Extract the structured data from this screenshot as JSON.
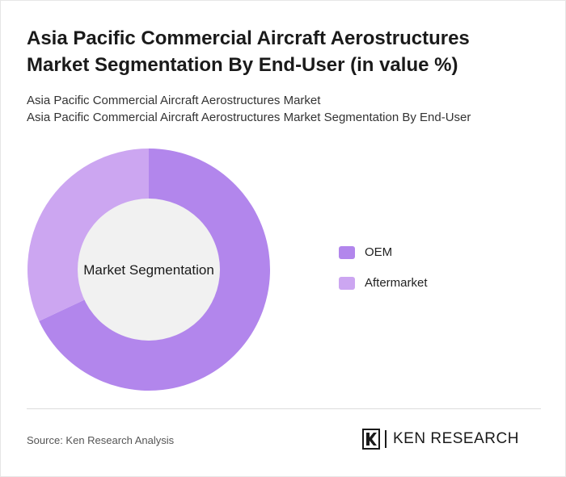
{
  "header": {
    "title": "Asia Pacific Commercial Aircraft Aerostructures Market Segmentation By End-User (in value %)",
    "subtitle_line1": "Asia Pacific Commercial Aircraft Aerostructures Market",
    "subtitle_line2": "Asia Pacific Commercial Aircraft Aerostructures Market Segmentation By End-User"
  },
  "chart_data": {
    "type": "pie",
    "donut": true,
    "center_label": "Market Segmentation",
    "categories": [
      "OEM",
      "Aftermarket"
    ],
    "values": [
      68,
      32
    ],
    "colors": [
      "#b286ec",
      "#cca6f1"
    ],
    "center_color": "#f1f1f1",
    "legend_position": "right"
  },
  "legend": {
    "items": [
      {
        "label": "OEM",
        "color": "#b286ec"
      },
      {
        "label": "Aftermarket",
        "color": "#cca6f1"
      }
    ]
  },
  "footer": {
    "source": "Source: Ken Research Analysis",
    "logo_text": "KEN RESEARCH"
  }
}
